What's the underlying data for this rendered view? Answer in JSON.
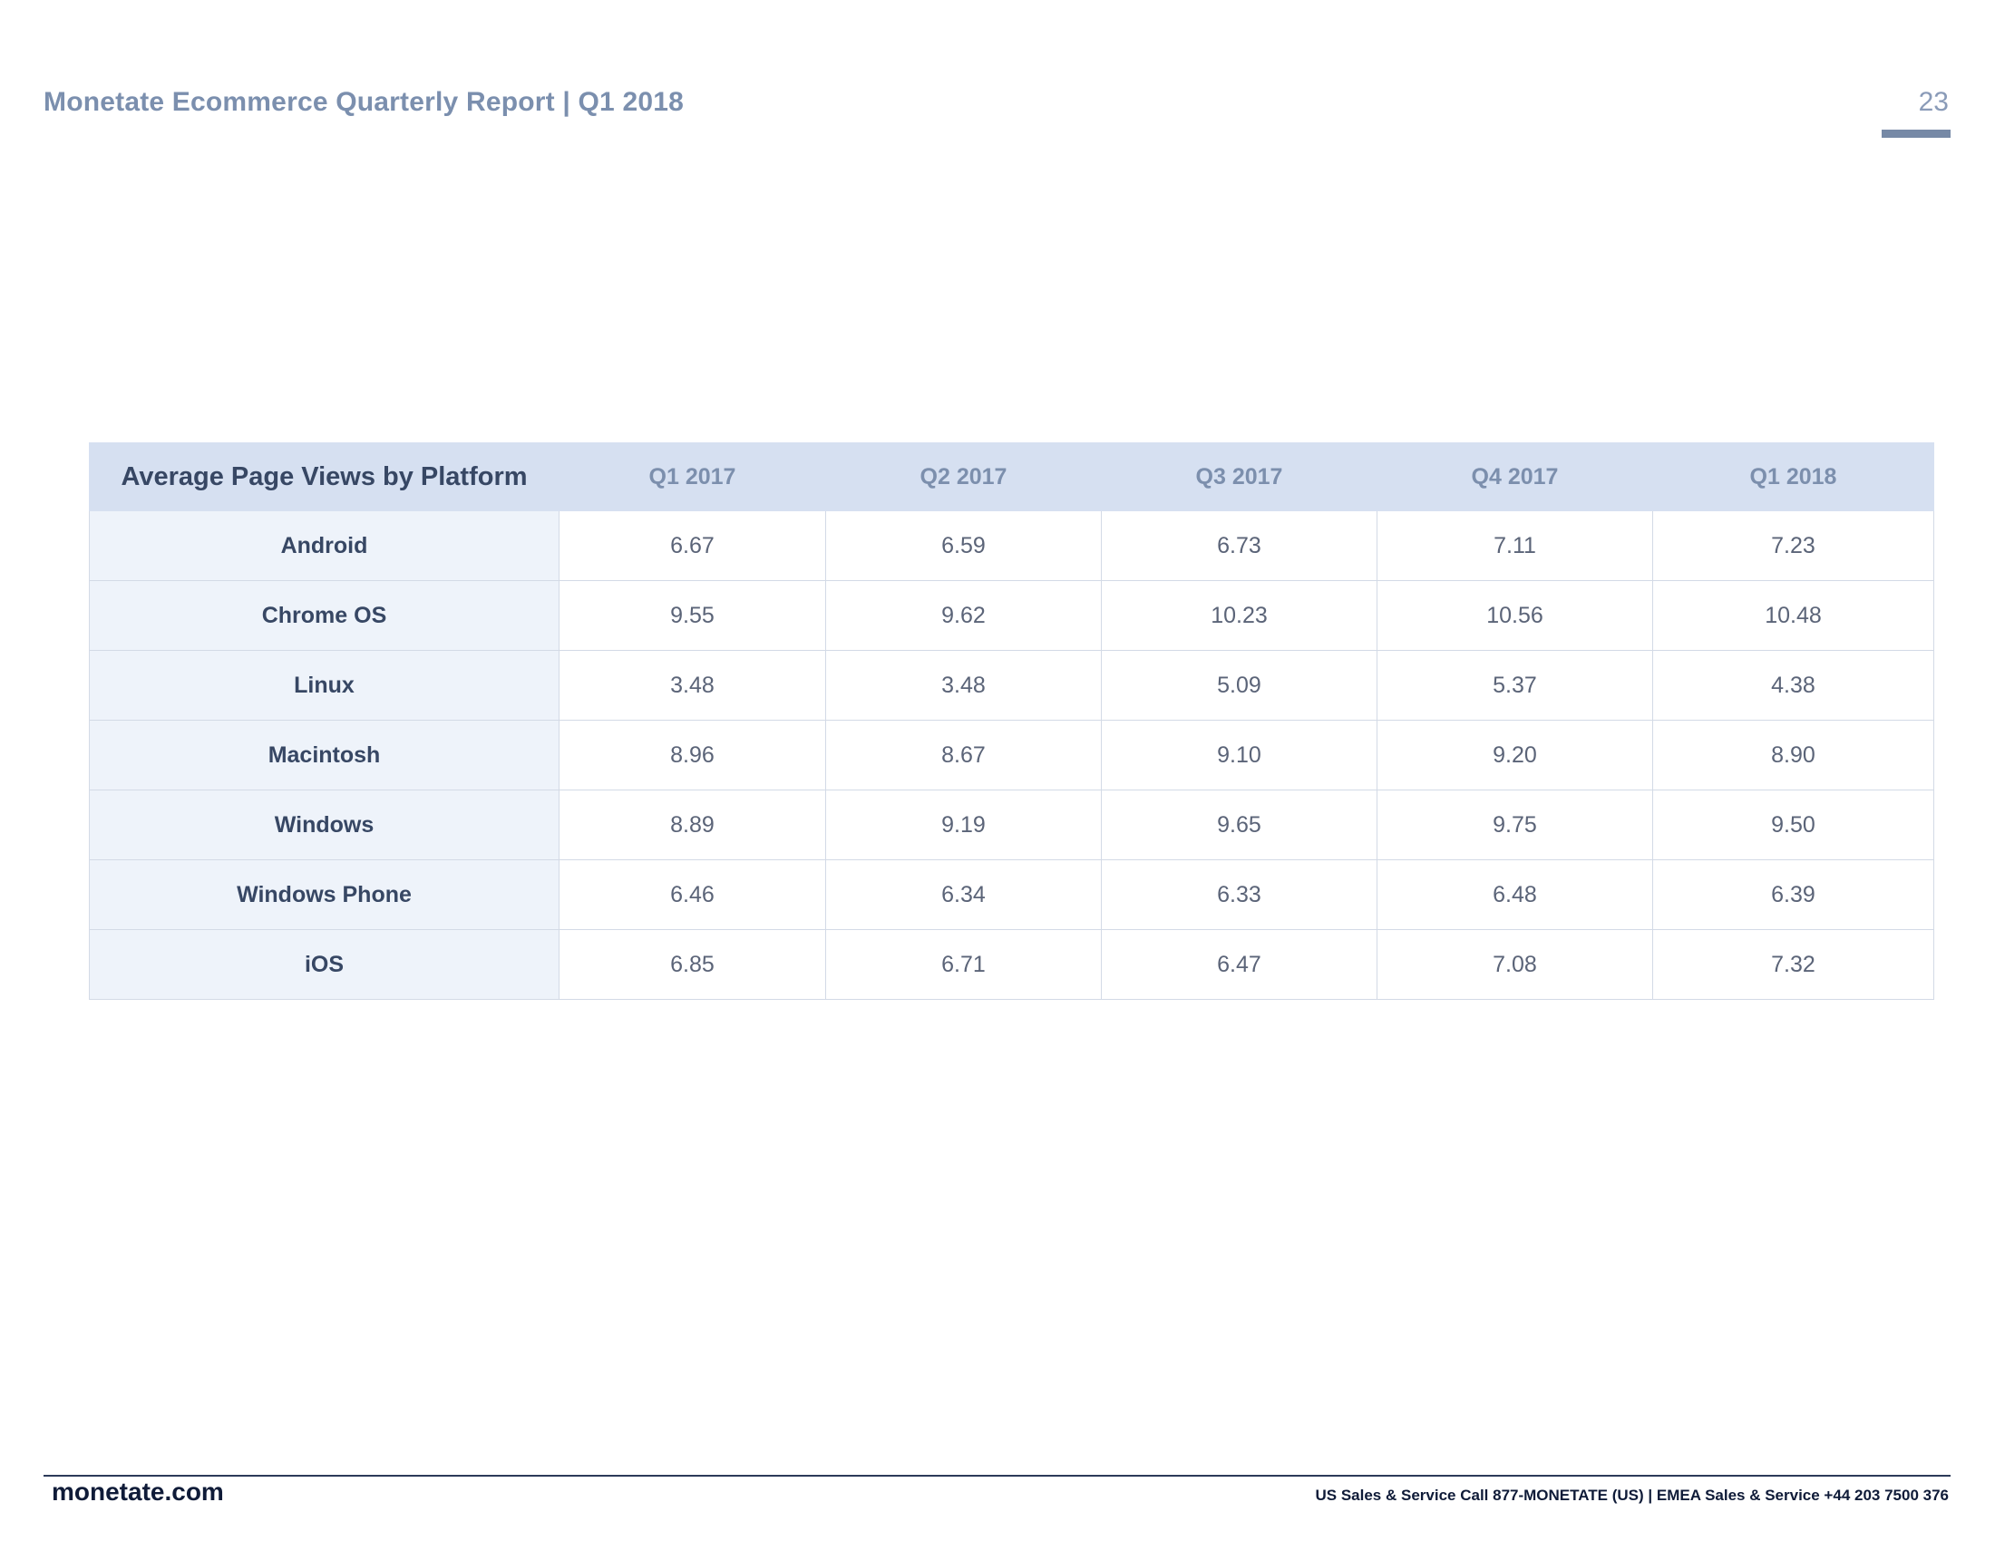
{
  "header": {
    "report_title": "Monetate Ecommerce Quarterly Report | Q1 2018",
    "page_number": "23"
  },
  "table": {
    "title": "Average Page Views by Platform",
    "columns": [
      "Q1 2017",
      "Q2 2017",
      "Q3 2017",
      "Q4 2017",
      "Q1 2018"
    ],
    "rows": [
      {
        "platform": "Android",
        "values": [
          "6.67",
          "6.59",
          "6.73",
          "7.11",
          "7.23"
        ]
      },
      {
        "platform": "Chrome OS",
        "values": [
          "9.55",
          "9.62",
          "10.23",
          "10.56",
          "10.48"
        ]
      },
      {
        "platform": "Linux",
        "values": [
          "3.48",
          "3.48",
          "5.09",
          "5.37",
          "4.38"
        ]
      },
      {
        "platform": "Macintosh",
        "values": [
          "8.96",
          "8.67",
          "9.10",
          "9.20",
          "8.90"
        ]
      },
      {
        "platform": "Windows",
        "values": [
          "8.89",
          "9.19",
          "9.65",
          "9.75",
          "9.50"
        ]
      },
      {
        "platform": "Windows Phone",
        "values": [
          "6.46",
          "6.34",
          "6.33",
          "6.48",
          "6.39"
        ]
      },
      {
        "platform": "iOS",
        "values": [
          "6.85",
          "6.71",
          "6.47",
          "7.08",
          "7.32"
        ]
      }
    ]
  },
  "footer": {
    "brand": "monetate.com",
    "contact": "US Sales & Service Call 877-MONETATE (US) | EMEA Sales & Service +44 203 7500 376"
  },
  "colors": {
    "title_text": "#7b8fae",
    "header_band": "#d6e0f1",
    "platform_cell": "#eef3fa",
    "dark_text": "#374764",
    "footer_rule": "#2c3a59"
  }
}
